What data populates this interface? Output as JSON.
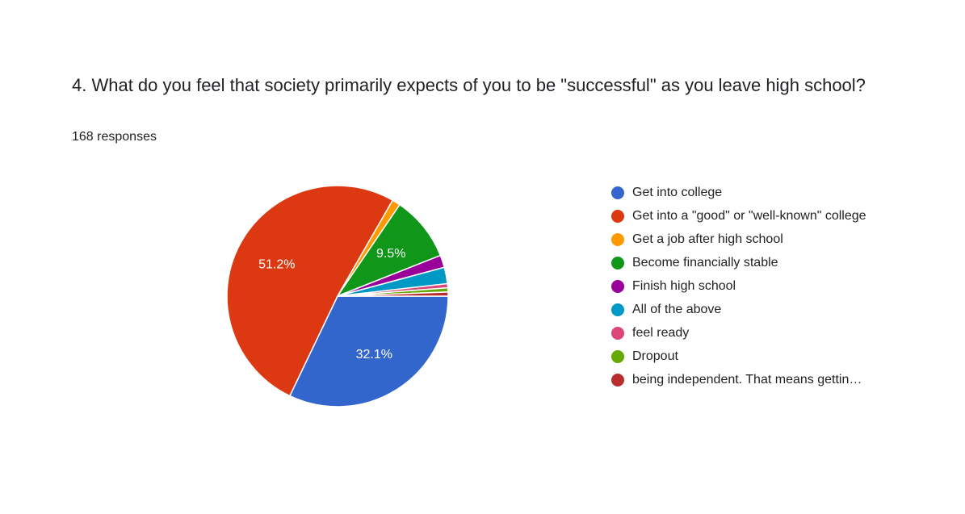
{
  "question": "4. What do you feel that society primarily expects of you to be \"successful\" as you leave high school?",
  "responses_text": "168 responses",
  "chart_data": {
    "type": "pie",
    "title": "4. What do you feel that society primarily expects of you to be \"successful\" as you leave high school?",
    "total_responses": 168,
    "legend_position": "right",
    "slices": [
      {
        "label": "Get into college",
        "percent": 32.1,
        "color": "#3366cc",
        "data_label": "32.1%"
      },
      {
        "label": "Get into a \"good\" or \"well-known\" college",
        "percent": 51.2,
        "color": "#dc3912",
        "data_label": "51.2%"
      },
      {
        "label": "Get a job after high school",
        "percent": 1.2,
        "color": "#ff9900",
        "data_label": ""
      },
      {
        "label": "Become financially stable",
        "percent": 9.5,
        "color": "#109618",
        "data_label": "9.5%"
      },
      {
        "label": "Finish high school",
        "percent": 1.8,
        "color": "#990099",
        "data_label": ""
      },
      {
        "label": "All of the above",
        "percent": 2.4,
        "color": "#0099c6",
        "data_label": ""
      },
      {
        "label": "feel ready",
        "percent": 0.6,
        "color": "#dd4477",
        "data_label": ""
      },
      {
        "label": "Dropout",
        "percent": 0.6,
        "color": "#66aa00",
        "data_label": ""
      },
      {
        "label": "being independent. That means gettin…",
        "percent": 0.6,
        "color": "#b82e2e",
        "data_label": ""
      }
    ]
  }
}
